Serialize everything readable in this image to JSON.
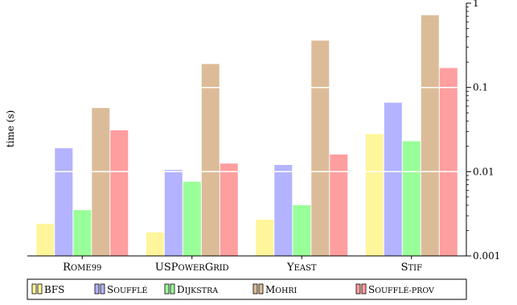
{
  "chart_data": {
    "type": "bar",
    "ylabel": "time (s)",
    "yscale": "log",
    "ylim": [
      0.001,
      1
    ],
    "yticks": [
      {
        "value": 0.001,
        "label": "0.001"
      },
      {
        "value": 0.01,
        "label": "0.01"
      },
      {
        "value": 0.1,
        "label": "0.1"
      },
      {
        "value": 1,
        "label": "1"
      }
    ],
    "categories": [
      "Rome99",
      "USPowerGrid",
      "Yeast",
      "Stif"
    ],
    "series": [
      {
        "name": "BFS",
        "color": "#fff59a",
        "values": [
          0.0024,
          0.0019,
          0.0027,
          0.028
        ]
      },
      {
        "name": "Soufflé",
        "color": "#b3b3ff",
        "values": [
          0.019,
          0.0105,
          0.012,
          0.066
        ]
      },
      {
        "name": "Dijkstra",
        "color": "#99ff99",
        "values": [
          0.0035,
          0.0076,
          0.004,
          0.023
        ]
      },
      {
        "name": "Mohri",
        "color": "#dcbc98",
        "values": [
          0.057,
          0.19,
          0.36,
          0.72
        ]
      },
      {
        "name": "Soufflé-prov",
        "color": "#ff9e9e",
        "values": [
          0.031,
          0.0125,
          0.016,
          0.17
        ]
      }
    ],
    "grid": "horizontal-white",
    "legend_position": "bottom"
  }
}
